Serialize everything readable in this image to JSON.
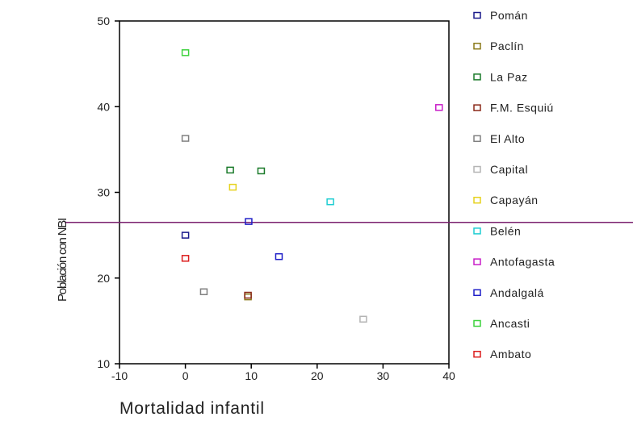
{
  "chart_data": {
    "type": "scatter",
    "xlabel": "Mortalidad infantil",
    "ylabel": "Población con NBI",
    "xlim": [
      -10,
      40
    ],
    "ylim": [
      10,
      50
    ],
    "x_ticks": [
      "-10",
      "0",
      "10",
      "20",
      "30",
      "40"
    ],
    "y_ticks": [
      "10",
      "20",
      "30",
      "40",
      "50"
    ],
    "grid": false,
    "legend_position": "right",
    "reference_line_y": 26.5,
    "reference_line_color": "#7a1f6e",
    "series": [
      {
        "name": "Pomán",
        "color": "#1a1a8c",
        "points": [
          {
            "x": 0,
            "y": 25.0
          }
        ]
      },
      {
        "name": "Paclín",
        "color": "#8b7a1a",
        "points": [
          {
            "x": 9.5,
            "y": 17.8
          }
        ]
      },
      {
        "name": "La Paz",
        "color": "#1a7a2a",
        "points": [
          {
            "x": 6.8,
            "y": 32.6
          },
          {
            "x": 11.5,
            "y": 32.5
          }
        ]
      },
      {
        "name": "F.M. Esquiú",
        "color": "#8b2a1a",
        "points": [
          {
            "x": 9.5,
            "y": 18.0
          }
        ]
      },
      {
        "name": "El Alto",
        "color": "#808080",
        "points": [
          {
            "x": 0,
            "y": 36.3
          },
          {
            "x": 2.8,
            "y": 18.4
          }
        ]
      },
      {
        "name": "Capital",
        "color": "#b4b4b4",
        "points": [
          {
            "x": 27.0,
            "y": 15.2
          }
        ]
      },
      {
        "name": "Capayán",
        "color": "#e6d21e",
        "points": [
          {
            "x": 7.2,
            "y": 30.6
          }
        ]
      },
      {
        "name": "Belén",
        "color": "#1ecdd2",
        "points": [
          {
            "x": 22.0,
            "y": 28.9
          }
        ]
      },
      {
        "name": "Antofagasta",
        "color": "#c81ec8",
        "points": [
          {
            "x": 38.5,
            "y": 39.9
          }
        ]
      },
      {
        "name": "Andalgalá",
        "color": "#1e1ec8",
        "points": [
          {
            "x": 9.6,
            "y": 26.6
          },
          {
            "x": 14.2,
            "y": 22.5
          }
        ]
      },
      {
        "name": "Ancasti",
        "color": "#3cd23c",
        "points": [
          {
            "x": 0,
            "y": 46.3
          }
        ]
      },
      {
        "name": "Ambato",
        "color": "#dc1e1e",
        "points": [
          {
            "x": 0,
            "y": 22.3
          }
        ]
      }
    ]
  }
}
